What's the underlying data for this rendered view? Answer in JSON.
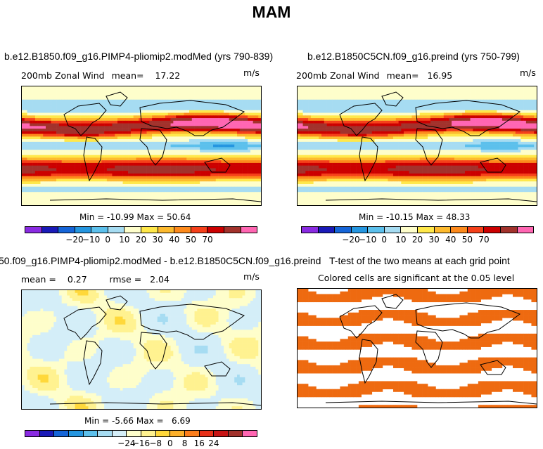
{
  "title": "MAM",
  "chart_data": [
    {
      "type": "heatmap",
      "title": "b.e12.B1850.f09_g16.PIMP4-pliomip2.modMed (yrs 790-839)",
      "variable": "200mb Zonal Wind",
      "mean_label": "mean=",
      "mean": "17.22",
      "units": "m/s",
      "min_label": "Min =",
      "min": "-10.99",
      "max_label": "Max =",
      "max": "50.64",
      "colorbar_ticks": [
        "−20",
        "−10",
        "0",
        "10",
        "20",
        "30",
        "40",
        "50",
        "70"
      ],
      "jets": [
        {
          "lat": 30,
          "value": 45,
          "width": 12
        },
        {
          "lat": -35,
          "value": 35,
          "width": 14
        },
        {
          "lat": 0,
          "value": -8,
          "width": 8
        }
      ]
    },
    {
      "type": "heatmap",
      "title": "b.e12.B1850C5CN.f09_g16.preind (yrs 750-799)",
      "variable": "200mb Zonal Wind",
      "mean_label": "mean=",
      "mean": "16.95",
      "units": "m/s",
      "min_label": "Min =",
      "min": "-10.15",
      "max_label": "Max =",
      "max": "48.33",
      "colorbar_ticks": [
        "−20",
        "−10",
        "0",
        "10",
        "20",
        "30",
        "40",
        "50",
        "70"
      ],
      "jets": [
        {
          "lat": 30,
          "value": 43,
          "width": 12
        },
        {
          "lat": -35,
          "value": 34,
          "width": 14
        },
        {
          "lat": 0,
          "value": -7,
          "width": 8
        }
      ]
    },
    {
      "type": "heatmap",
      "title": "50.f09_g16.PIMP4-pliomip2.modMed - b.e12.B1850C5CN.f09_g16.preind",
      "mean_label": "mean =",
      "mean": "0.27",
      "rmse_label": "rmse =",
      "rmse": "2.04",
      "units": "m/s",
      "min_label": "Min =",
      "min": "-5.66",
      "max_label": "Max =",
      "max": "6.69",
      "colorbar_ticks": [
        "−24",
        "−16",
        "−8",
        "0",
        "8",
        "16",
        "24"
      ]
    },
    {
      "type": "heatmap",
      "title": "T-test of the two means at each grid point",
      "subtitle": "Colored cells are significant at the 0.05 level",
      "significance_color": "#ee6a10"
    }
  ],
  "colors": {
    "panel_scale": [
      "#8a2be2",
      "#1a1ab8",
      "#1565d8",
      "#2596e0",
      "#5cc0ec",
      "#a6dcf2",
      "#fefecb",
      "#ffe84a",
      "#fdba2e",
      "#fd8a1c",
      "#f5401a",
      "#cc0000",
      "#a2322c",
      "#ff66b2"
    ],
    "diff_scale": [
      "#8a2be2",
      "#1a1ab8",
      "#1565d8",
      "#2596e0",
      "#5cc0ec",
      "#a6dcf2",
      "#d4eef8",
      "#fefecb",
      "#fff290",
      "#ffd83a",
      "#fdb02a",
      "#fd7e1c",
      "#e83018",
      "#c81414",
      "#a2322c",
      "#ff66b2"
    ]
  }
}
